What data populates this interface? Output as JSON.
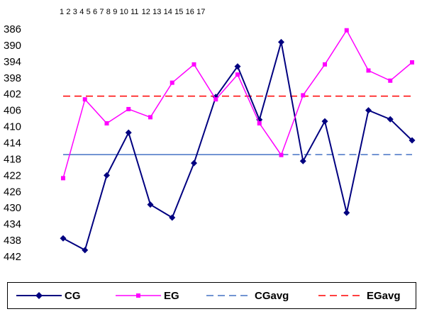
{
  "chart_data": {
    "type": "line",
    "x": [
      1,
      2,
      3,
      4,
      5,
      6,
      7,
      8,
      9,
      10,
      11,
      12,
      13,
      14,
      15,
      16,
      17
    ],
    "x_tick_labels": [
      "1",
      "2",
      "3",
      "4",
      "5",
      "6",
      "7",
      "8",
      "9",
      "10",
      "11",
      "12",
      "13",
      "14",
      "15",
      "16",
      "17"
    ],
    "y_tick_labels": [
      "386",
      "390",
      "394",
      "398",
      "402",
      "406",
      "410",
      "414",
      "418",
      "422",
      "426",
      "430",
      "434",
      "438",
      "442"
    ],
    "ylim": [
      386,
      442
    ],
    "y_reversed": true,
    "x_axis_position": "top",
    "grid": false,
    "legend_position": "bottom",
    "series": [
      {
        "name": "CG",
        "color": "#000080",
        "style": "solid",
        "marker": "diamond",
        "values": [
          437.5,
          440.4,
          422.0,
          411.5,
          429.2,
          432.4,
          419.0,
          402.7,
          395.2,
          408.3,
          389.2,
          418.5,
          408.7,
          431.2,
          406.0,
          408.2,
          413.4
        ]
      },
      {
        "name": "EG",
        "color": "#ff00ff",
        "style": "solid",
        "marker": "square",
        "values": [
          422.7,
          403.3,
          409.2,
          405.7,
          407.7,
          399.2,
          394.7,
          403.3,
          397.2,
          409.2,
          417.0,
          402.3,
          394.7,
          386.3,
          396.2,
          398.7,
          394.2
        ]
      },
      {
        "name": "CGavg",
        "color": "#4472c4",
        "style": "mixed",
        "solid_until_x": 11,
        "marker": "none",
        "values": [
          416.9,
          416.9,
          416.9,
          416.9,
          416.9,
          416.9,
          416.9,
          416.9,
          416.9,
          416.9,
          416.9,
          416.9,
          416.9,
          416.9,
          416.9,
          416.9,
          416.9
        ]
      },
      {
        "name": "EGavg",
        "color": "#ff0000",
        "style": "dashed",
        "marker": "none",
        "values": [
          402.5,
          402.5,
          402.5,
          402.5,
          402.5,
          402.5,
          402.5,
          402.5,
          402.5,
          402.5,
          402.5,
          402.5,
          402.5,
          402.5,
          402.5,
          402.5,
          402.5
        ]
      }
    ]
  }
}
